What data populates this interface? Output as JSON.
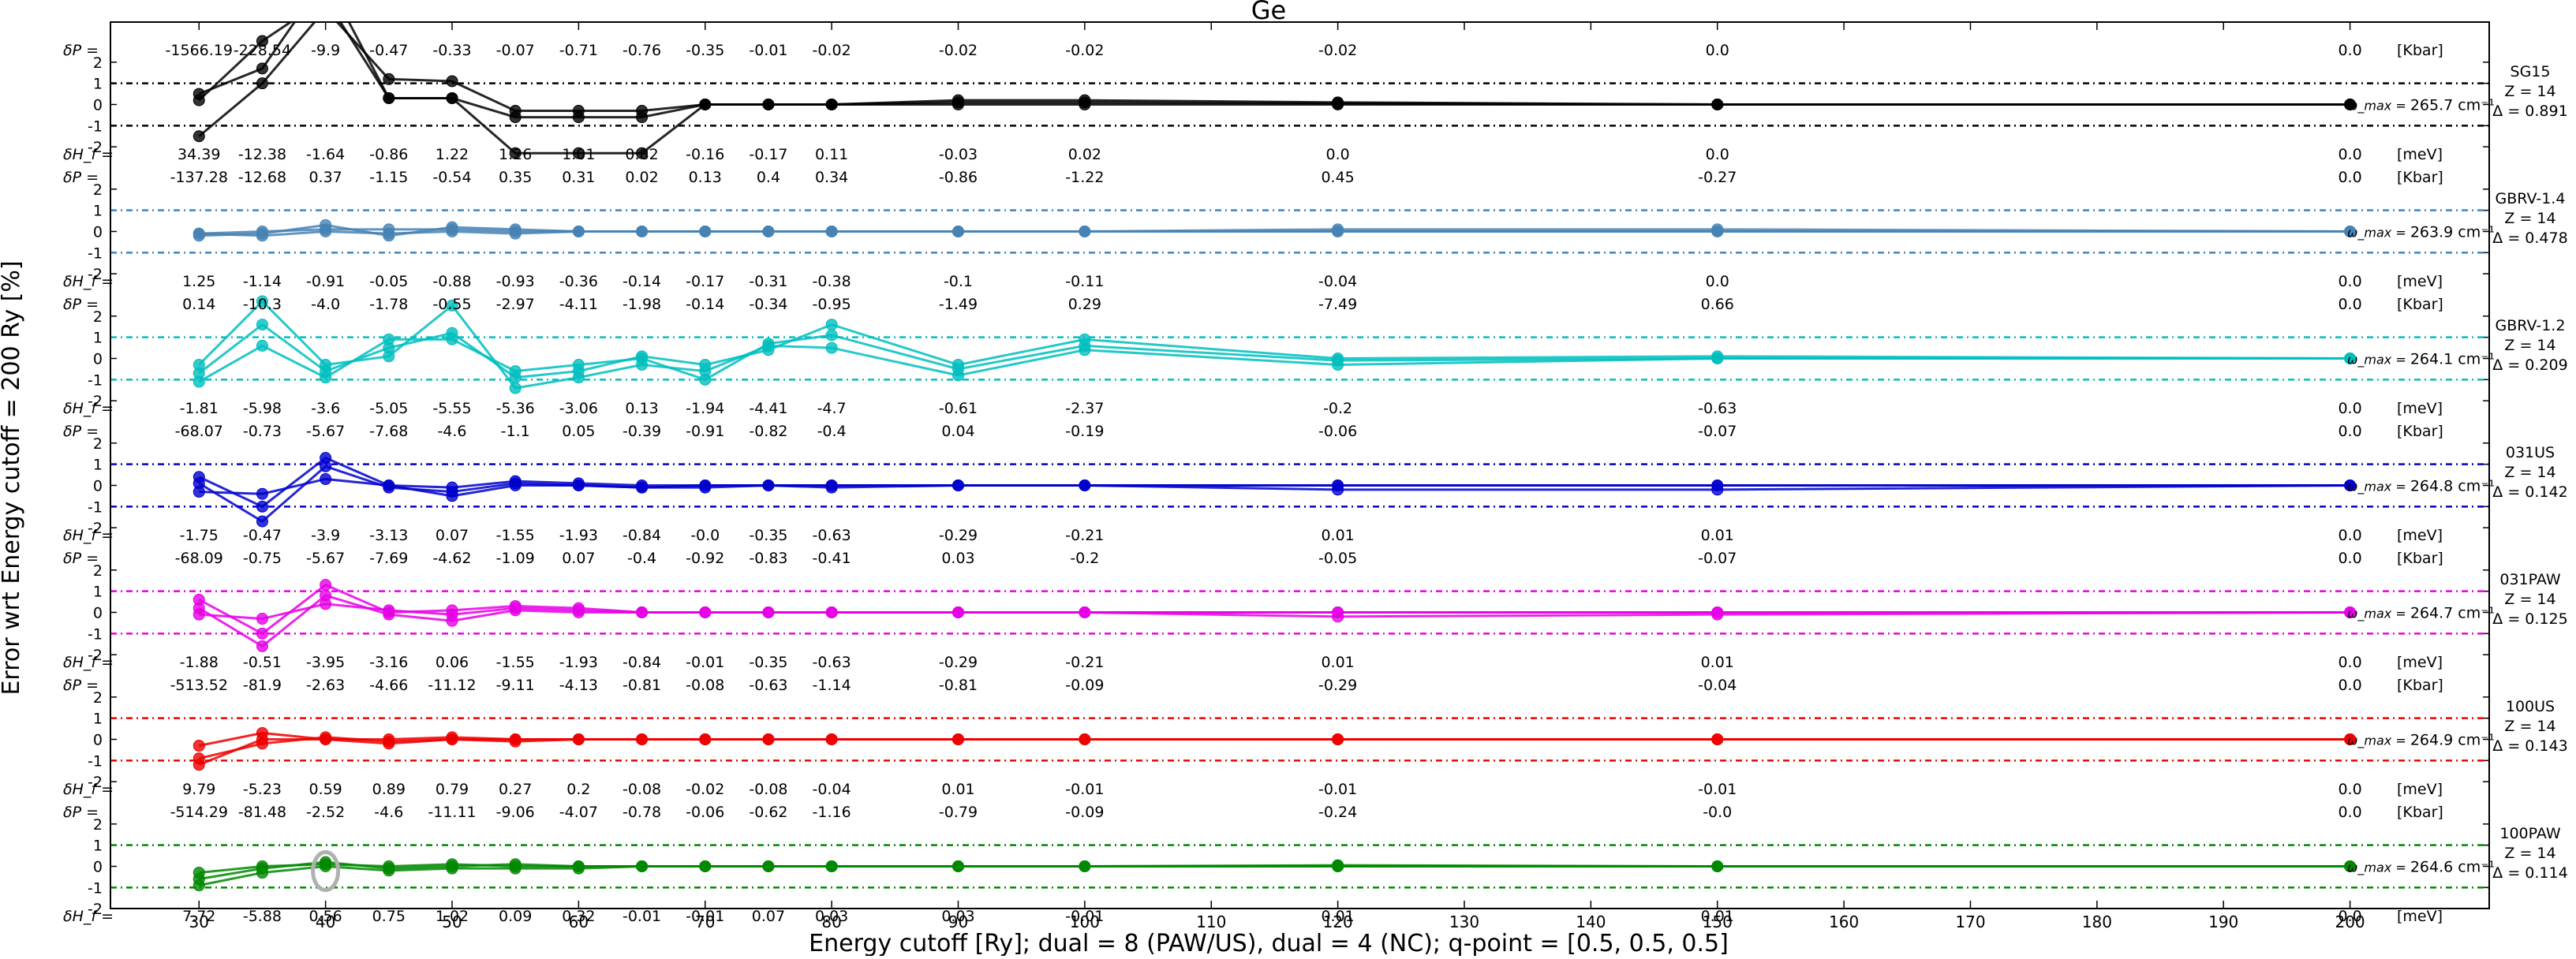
{
  "chart_data": {
    "type": "line",
    "title": "Ge",
    "xlabel": "Energy cutoff [Ry]; dual = 8 (PAW/US), dual = 4 (NC); q-point = [0.5, 0.5, 0.5]",
    "ylabel": "Error wrt Energy cutoff = 200 Ry [%]",
    "xlim": [
      23,
      211
    ],
    "x_ticks": [
      30,
      40,
      50,
      60,
      70,
      80,
      90,
      100,
      110,
      120,
      130,
      140,
      150,
      160,
      170,
      180,
      190,
      200
    ],
    "ylim_per_panel": [
      -3,
      3
    ],
    "y_tick_labels": [
      "-2",
      "-1",
      "0",
      "1",
      "2"
    ],
    "grid": false,
    "row_labels": {
      "dP": "δP =",
      "dH": "δH_f =",
      "p_unit": "[Kbar]",
      "h_unit": "[meV]",
      "omega_prefix": "ω_max ="
    },
    "x": [
      30,
      35,
      40,
      45,
      50,
      55,
      60,
      65,
      70,
      75,
      80,
      90,
      100,
      120,
      150,
      200
    ],
    "panels": [
      {
        "name": "SG15",
        "z_label": "Z = 14",
        "delta_label": "Δ = 0.891",
        "omega": "265.7 cm⁻¹",
        "color": "#000000",
        "dP": [
          "-1566.19",
          "-228.54",
          "-9.9",
          "-0.47",
          "-0.33",
          "-0.07",
          "-0.71",
          "-0.76",
          "-0.35",
          "-0.01",
          "-0.02",
          "-0.02",
          "-0.02",
          "-0.02",
          "0.0",
          "0.0"
        ],
        "dH": [
          "34.39",
          "-12.38",
          "-1.64",
          "-0.86",
          "1.22",
          "1.26",
          "1.01",
          "0.82",
          "-0.16",
          "-0.17",
          "0.11",
          "-0.03",
          "0.02",
          "0.0",
          "0.0",
          "0.0"
        ],
        "series": [
          {
            "values": [
              -1.5,
              1.0,
              4.5,
              1.2,
              1.1,
              -0.3,
              -0.3,
              -0.3,
              0.0,
              0.0,
              0.0,
              0.1,
              0.1,
              0.05,
              0.0,
              0.0
            ]
          },
          {
            "values": [
              0.5,
              1.7,
              6.0,
              0.3,
              0.3,
              -2.3,
              -2.3,
              -2.3,
              0.0,
              0.0,
              0.0,
              0.2,
              0.2,
              0.1,
              0.0,
              0.0
            ]
          },
          {
            "values": [
              0.2,
              3.0,
              5.0,
              0.3,
              0.3,
              -0.6,
              -0.6,
              -0.6,
              0.0,
              0.0,
              0.0,
              0.0,
              0.0,
              0.0,
              0.0,
              0.0
            ]
          }
        ]
      },
      {
        "name": "GBRV-1.4",
        "z_label": "Z = 14",
        "delta_label": "Δ = 0.478",
        "omega": "263.9 cm⁻¹",
        "color": "#4682b4",
        "dP": [
          "-137.28",
          "-12.68",
          "0.37",
          "-1.15",
          "-0.54",
          "0.35",
          "0.31",
          "0.02",
          "0.13",
          "0.4",
          "0.34",
          "-0.86",
          "-1.22",
          "0.45",
          "-0.27",
          "0.0"
        ],
        "dH": [
          "1.25",
          "-1.14",
          "-0.91",
          "-0.05",
          "-0.88",
          "-0.93",
          "-0.36",
          "-0.14",
          "-0.17",
          "-0.31",
          "-0.38",
          "-0.1",
          "-0.11",
          "-0.04",
          "0.0",
          "0.0"
        ],
        "series": [
          {
            "values": [
              -0.2,
              -0.1,
              0.3,
              -0.2,
              0.2,
              0.1,
              0.0,
              0.0,
              0.0,
              0.0,
              0.0,
              0.0,
              0.0,
              0.1,
              0.1,
              0.0
            ]
          },
          {
            "values": [
              -0.1,
              0.0,
              0.1,
              0.1,
              0.1,
              0.0,
              0.0,
              0.0,
              0.0,
              0.0,
              0.0,
              0.0,
              0.0,
              0.0,
              0.0,
              0.0
            ]
          },
          {
            "values": [
              -0.1,
              -0.2,
              0.0,
              -0.1,
              0.0,
              -0.1,
              0.0,
              0.0,
              0.0,
              0.0,
              0.0,
              0.0,
              0.0,
              0.0,
              0.0,
              0.0
            ]
          }
        ]
      },
      {
        "name": "GBRV-1.2",
        "z_label": "Z = 14",
        "delta_label": "Δ = 0.209",
        "omega": "264.1 cm⁻¹",
        "color": "#00bebe",
        "dP": [
          "0.14",
          "-10.3",
          "-4.0",
          "-1.78",
          "-0.55",
          "-2.97",
          "-4.11",
          "-1.98",
          "-0.14",
          "-0.34",
          "-0.95",
          "-1.49",
          "0.29",
          "-7.49",
          "0.66",
          "0.0"
        ],
        "dH": [
          "-1.81",
          "-5.98",
          "-3.6",
          "-5.05",
          "-5.55",
          "-5.36",
          "-3.06",
          "0.13",
          "-1.94",
          "-4.41",
          "-4.7",
          "-0.61",
          "-2.37",
          "-0.2",
          "-0.63",
          "0.0"
        ],
        "series": [
          {
            "values": [
              -0.3,
              2.7,
              -0.3,
              0.1,
              2.5,
              -1.4,
              -0.9,
              -0.3,
              -0.6,
              0.6,
              0.5,
              -0.8,
              0.4,
              -0.3,
              0.0,
              0.0
            ]
          },
          {
            "values": [
              -0.7,
              1.6,
              -0.6,
              0.5,
              1.2,
              -0.9,
              -0.6,
              0.1,
              -0.3,
              0.4,
              1.6,
              -0.3,
              0.9,
              0.0,
              0.1,
              0.0
            ]
          },
          {
            "values": [
              -1.1,
              0.6,
              -0.9,
              0.9,
              0.9,
              -0.6,
              -0.3,
              0.0,
              -1.0,
              0.7,
              1.1,
              -0.5,
              0.6,
              -0.1,
              0.0,
              0.0
            ]
          }
        ]
      },
      {
        "name": "031US",
        "z_label": "Z = 14",
        "delta_label": "Δ = 0.142",
        "omega": "264.8 cm⁻¹",
        "color": "#0000cd",
        "dP": [
          "-68.07",
          "-0.73",
          "-5.67",
          "-7.68",
          "-4.6",
          "-1.1",
          "0.05",
          "-0.39",
          "-0.91",
          "-0.82",
          "-0.4",
          "0.04",
          "-0.19",
          "-0.06",
          "-0.07",
          "0.0"
        ],
        "dH": [
          "-1.75",
          "-0.47",
          "-3.9",
          "-3.13",
          "0.07",
          "-1.55",
          "-1.93",
          "-0.84",
          "-0.0",
          "-0.35",
          "-0.63",
          "-0.29",
          "-0.21",
          "0.01",
          "0.01",
          "0.0"
        ],
        "series": [
          {
            "values": [
              0.4,
              -1.0,
              1.3,
              0.0,
              -0.1,
              0.2,
              0.1,
              0.0,
              0.0,
              0.0,
              0.0,
              0.0,
              0.0,
              0.0,
              0.0,
              0.0
            ]
          },
          {
            "values": [
              0.1,
              -1.7,
              0.9,
              -0.1,
              -0.3,
              0.1,
              0.0,
              -0.1,
              -0.1,
              0.0,
              -0.1,
              0.0,
              0.0,
              -0.2,
              -0.2,
              0.0
            ]
          },
          {
            "values": [
              -0.3,
              -0.4,
              0.3,
              0.0,
              -0.5,
              0.0,
              0.0,
              -0.1,
              0.0,
              0.0,
              0.0,
              0.0,
              0.0,
              0.0,
              0.0,
              0.0
            ]
          }
        ]
      },
      {
        "name": "031PAW",
        "z_label": "Z = 14",
        "delta_label": "Δ = 0.125",
        "omega": "264.7 cm⁻¹",
        "color": "#e600e6",
        "dP": [
          "-68.09",
          "-0.75",
          "-5.67",
          "-7.69",
          "-4.62",
          "-1.09",
          "0.07",
          "-0.4",
          "-0.92",
          "-0.83",
          "-0.41",
          "0.03",
          "-0.2",
          "-0.05",
          "-0.07",
          "0.0"
        ],
        "dH": [
          "-1.88",
          "-0.51",
          "-3.95",
          "-3.16",
          "0.06",
          "-1.55",
          "-1.93",
          "-0.84",
          "-0.01",
          "-0.35",
          "-0.63",
          "-0.29",
          "-0.21",
          "0.01",
          "0.01",
          "0.0"
        ],
        "series": [
          {
            "values": [
              0.6,
              -1.0,
              1.3,
              0.0,
              0.1,
              0.3,
              0.2,
              0.0,
              0.0,
              0.0,
              0.0,
              0.0,
              0.0,
              0.0,
              0.0,
              0.0
            ]
          },
          {
            "values": [
              0.2,
              -1.6,
              0.8,
              -0.1,
              -0.4,
              0.1,
              0.0,
              0.0,
              0.0,
              0.0,
              0.0,
              0.0,
              0.0,
              -0.2,
              -0.1,
              0.0
            ]
          },
          {
            "values": [
              -0.1,
              -0.3,
              0.4,
              0.1,
              -0.1,
              0.2,
              0.1,
              0.0,
              0.0,
              0.0,
              0.0,
              0.0,
              0.0,
              0.0,
              0.0,
              0.0
            ]
          }
        ]
      },
      {
        "name": "100US",
        "z_label": "Z = 14",
        "delta_label": "Δ = 0.143",
        "omega": "264.9 cm⁻¹",
        "color": "#ee0000",
        "dP": [
          "-513.52",
          "-81.9",
          "-2.63",
          "-4.66",
          "-11.12",
          "-9.11",
          "-4.13",
          "-0.81",
          "-0.08",
          "-0.63",
          "-1.14",
          "-0.81",
          "-0.09",
          "-0.29",
          "-0.04",
          "0.0"
        ],
        "dH": [
          "9.79",
          "-5.23",
          "0.59",
          "0.89",
          "0.79",
          "0.27",
          "0.2",
          "-0.08",
          "-0.02",
          "-0.08",
          "-0.04",
          "0.01",
          "-0.01",
          "-0.01",
          "-0.01",
          "0.0"
        ],
        "series": [
          {
            "values": [
              -0.3,
              0.3,
              0.0,
              0.0,
              0.1,
              0.0,
              0.0,
              0.0,
              0.0,
              0.0,
              0.0,
              0.0,
              0.0,
              0.0,
              0.0,
              0.0
            ]
          },
          {
            "values": [
              -0.9,
              -0.2,
              0.1,
              -0.1,
              0.0,
              0.0,
              0.0,
              0.0,
              0.0,
              0.0,
              0.0,
              0.0,
              0.0,
              0.0,
              0.0,
              0.0
            ]
          },
          {
            "values": [
              -1.2,
              0.0,
              0.0,
              -0.2,
              0.0,
              -0.1,
              0.0,
              0.0,
              0.0,
              0.0,
              0.0,
              0.0,
              0.0,
              0.0,
              0.0,
              0.0
            ]
          }
        ]
      },
      {
        "name": "100PAW",
        "z_label": "Z = 14",
        "delta_label": "Δ = 0.114",
        "omega": "264.6 cm⁻¹",
        "color": "#008800",
        "dP": [
          "-514.29",
          "-81.48",
          "-2.52",
          "-4.6",
          "-11.11",
          "-9.06",
          "-4.07",
          "-0.78",
          "-0.06",
          "-0.62",
          "-1.16",
          "-0.79",
          "-0.09",
          "-0.24",
          "-0.0",
          "0.0"
        ],
        "dH": [
          "7.72",
          "-5.88",
          "0.56",
          "0.75",
          "1.02",
          "0.09",
          "0.32",
          "-0.01",
          "-0.01",
          "0.07",
          "0.03",
          "0.03",
          "-0.01",
          "0.01",
          "0.01",
          "0.0"
        ],
        "series": [
          {
            "values": [
              -0.3,
              0.0,
              0.1,
              0.0,
              0.1,
              0.0,
              0.0,
              0.0,
              0.0,
              0.0,
              0.0,
              0.0,
              0.0,
              0.0,
              0.0,
              0.0
            ]
          },
          {
            "values": [
              -0.6,
              -0.1,
              0.2,
              -0.1,
              0.0,
              0.1,
              0.0,
              0.0,
              0.0,
              0.0,
              0.0,
              0.0,
              0.0,
              0.0,
              0.0,
              0.0
            ]
          },
          {
            "values": [
              -0.9,
              -0.3,
              0.0,
              -0.2,
              -0.1,
              -0.1,
              -0.1,
              0.0,
              0.0,
              0.0,
              0.0,
              0.0,
              0.0,
              0.05,
              0.0,
              0.0
            ]
          }
        ]
      }
    ]
  }
}
